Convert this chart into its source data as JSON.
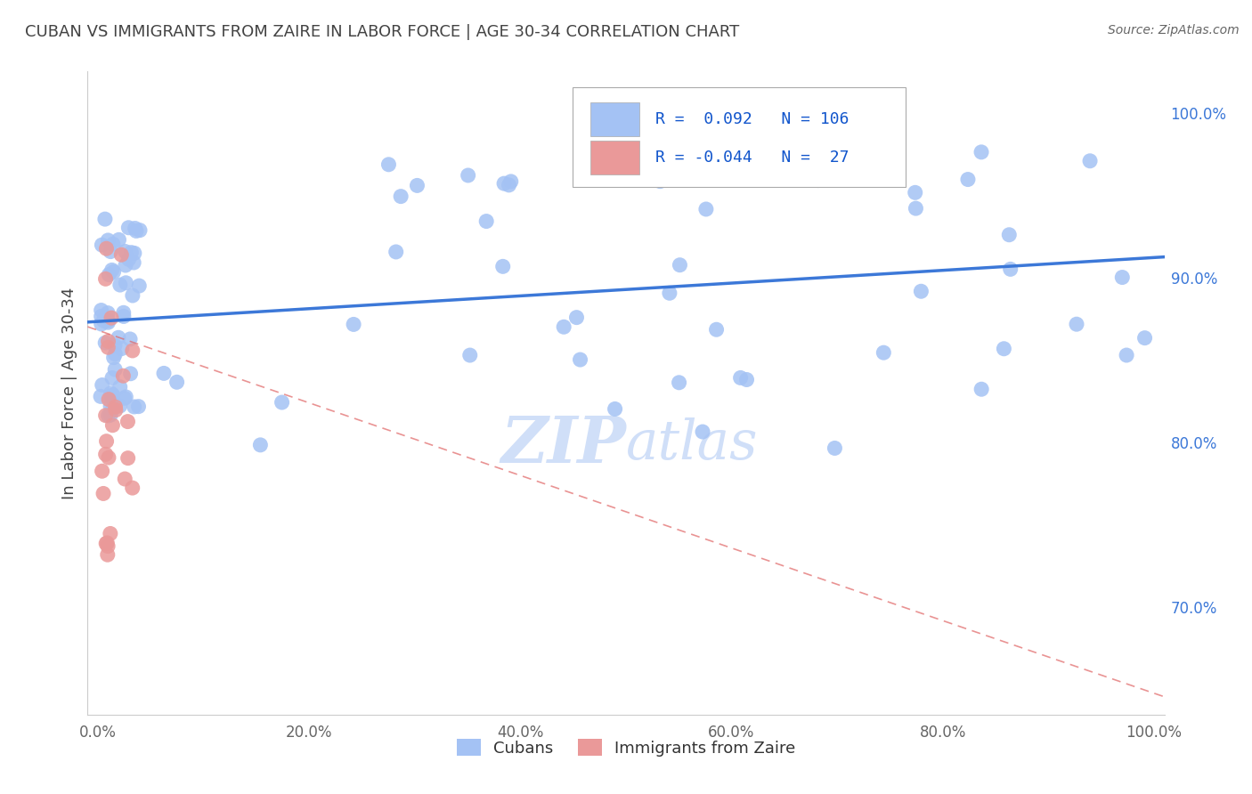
{
  "title": "CUBAN VS IMMIGRANTS FROM ZAIRE IN LABOR FORCE | AGE 30-34 CORRELATION CHART",
  "source": "Source: ZipAtlas.com",
  "ylabel": "In Labor Force | Age 30-34",
  "xlim": [
    -0.01,
    1.01
  ],
  "ylim": [
    0.635,
    1.025
  ],
  "right_yticks": [
    0.7,
    0.8,
    0.9,
    1.0
  ],
  "right_yticklabels": [
    "70.0%",
    "80.0%",
    "90.0%",
    "100.0%"
  ],
  "xticks": [
    0.0,
    0.2,
    0.4,
    0.6,
    0.8,
    1.0
  ],
  "xticklabels": [
    "0.0%",
    "20.0%",
    "40.0%",
    "60.0%",
    "80.0%",
    "100.0%"
  ],
  "cubans_R": 0.092,
  "cubans_N": 106,
  "zaire_R": -0.044,
  "zaire_N": 27,
  "blue_color": "#a4c2f4",
  "pink_color": "#ea9999",
  "blue_line_color": "#3c78d8",
  "pink_line_color": "#e06666",
  "title_color": "#434343",
  "axis_label_color": "#434343",
  "legend_R_color": "#1155cc",
  "background_color": "#ffffff",
  "grid_color": "#e0e0e0",
  "watermark_color": "#d0dff8",
  "right_axis_color": "#3c78d8"
}
